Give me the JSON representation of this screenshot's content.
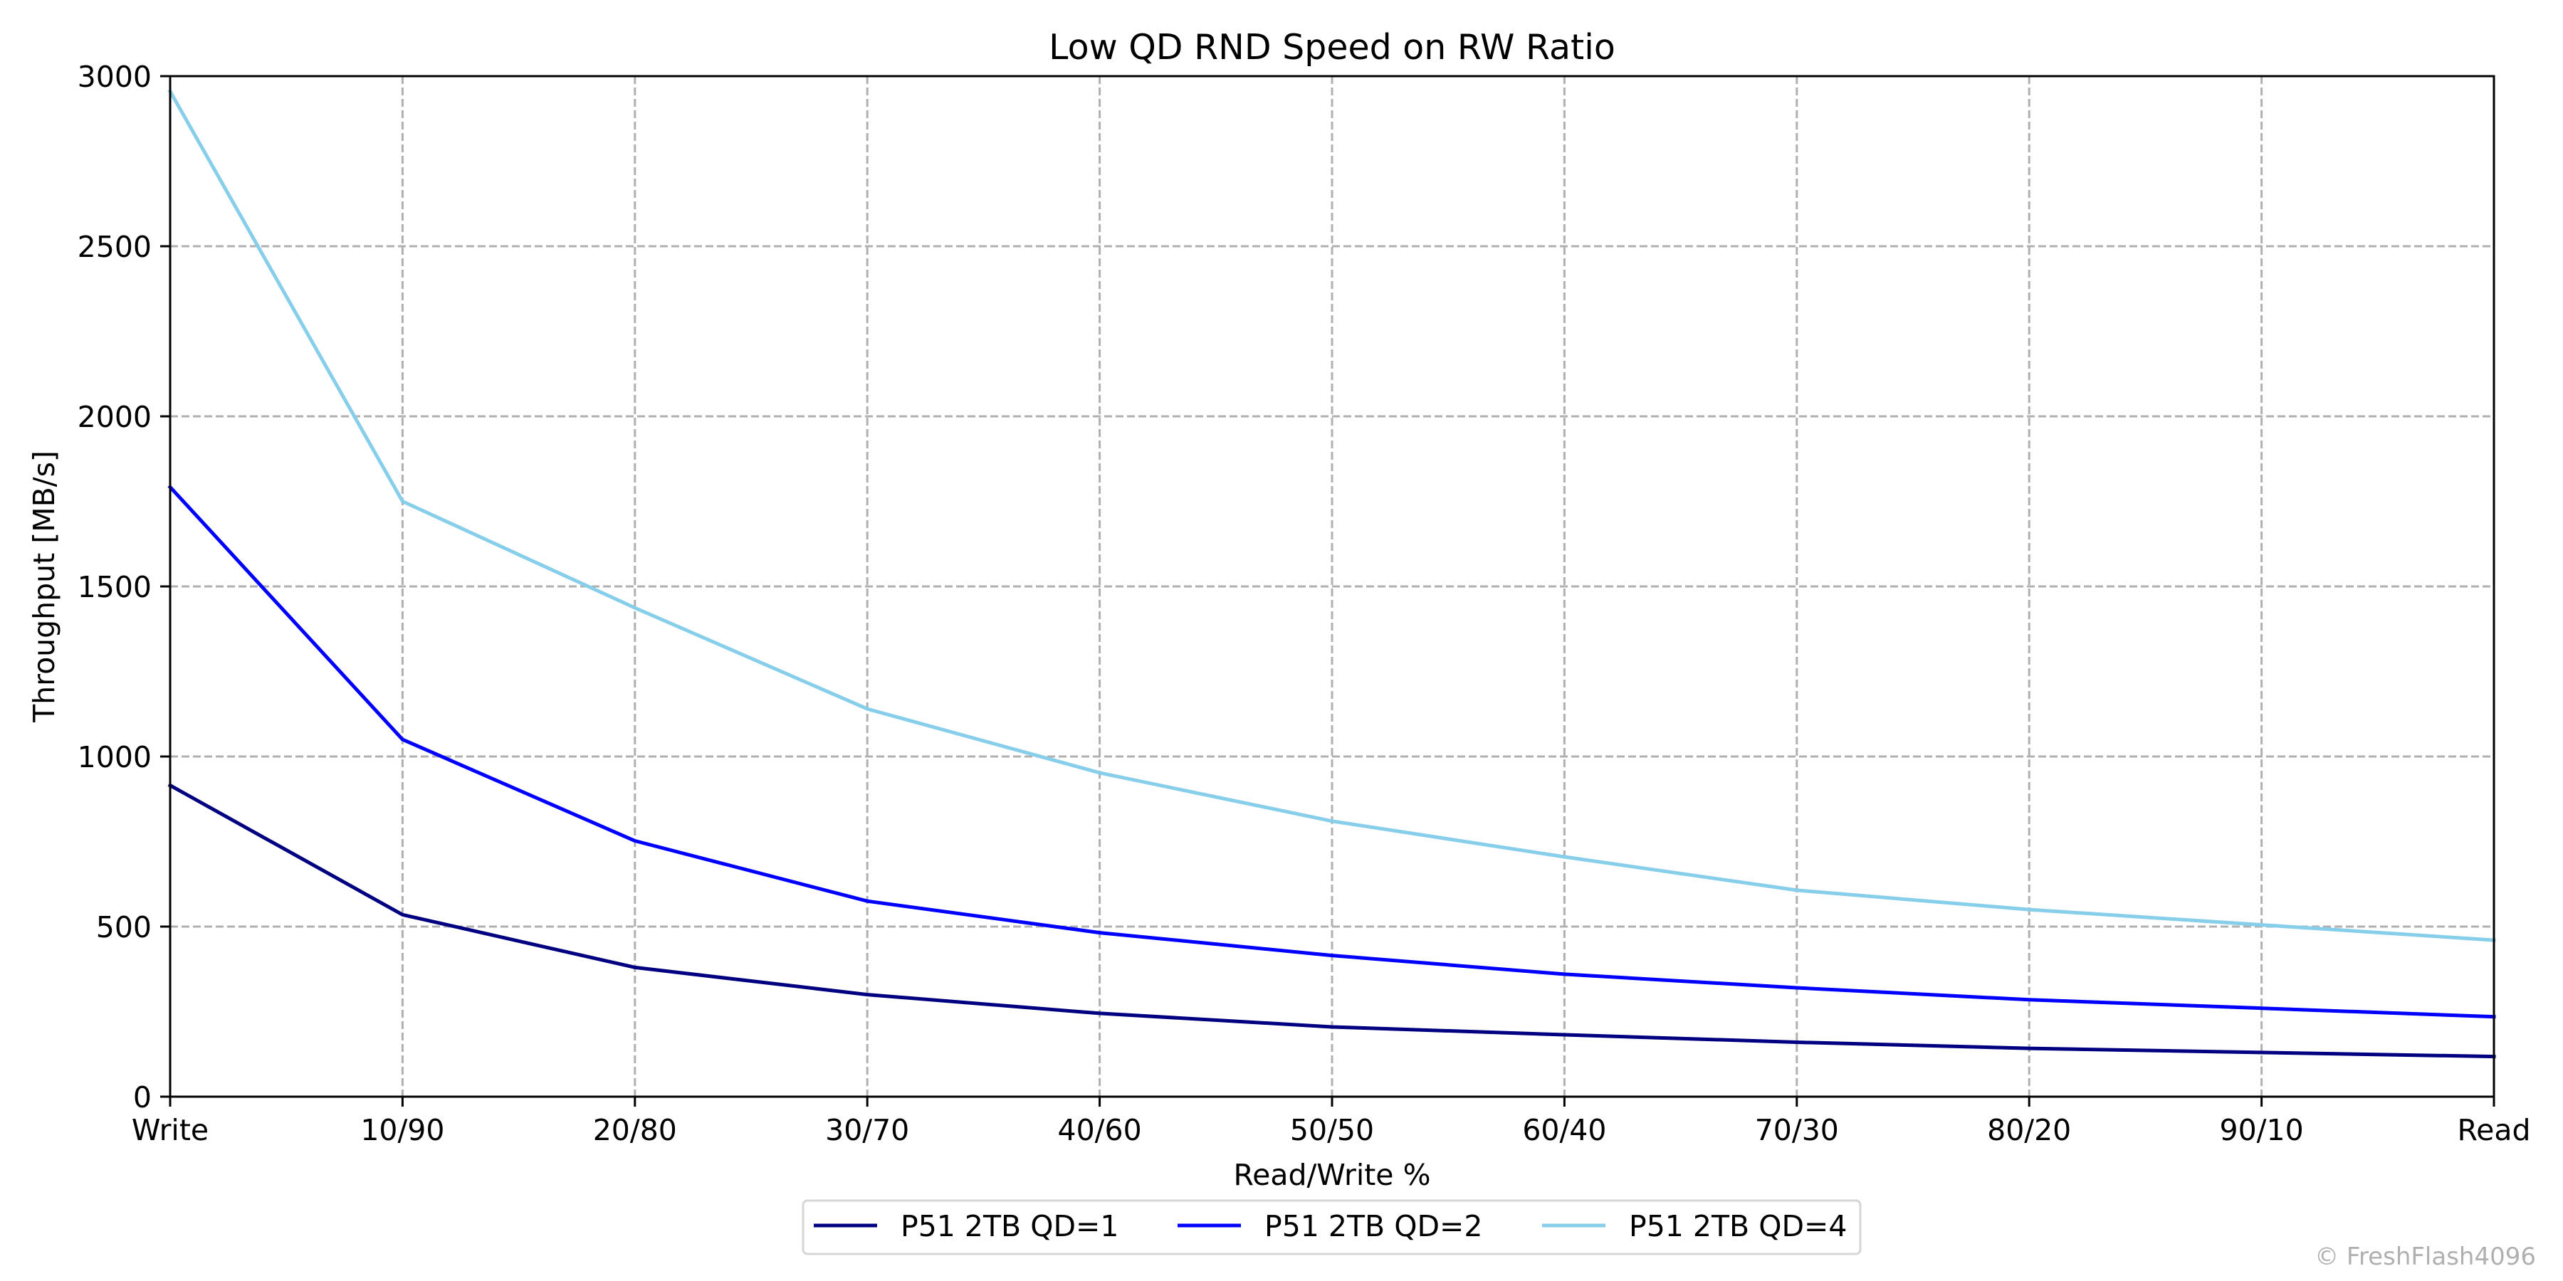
{
  "chart_data": {
    "type": "line",
    "title": "Low QD RND Speed on RW Ratio",
    "xlabel": "Read/Write %",
    "ylabel": "Throughput [MB/s]",
    "categories": [
      "Write",
      "10/90",
      "20/80",
      "30/70",
      "40/60",
      "50/50",
      "60/40",
      "70/30",
      "80/20",
      "90/10",
      "Read"
    ],
    "ylim": [
      0,
      3000
    ],
    "yticks": [
      0,
      500,
      1000,
      1500,
      2000,
      2500,
      3000
    ],
    "grid": true,
    "legend_position": "bottom-center",
    "series": [
      {
        "name": "P51 2TB QD=1",
        "color": "#000080",
        "values": [
          915,
          535,
          380,
          300,
          245,
          205,
          182,
          160,
          142,
          130,
          118
        ]
      },
      {
        "name": "P51 2TB QD=2",
        "color": "#0000ff",
        "values": [
          1792,
          1050,
          752,
          575,
          482,
          415,
          360,
          320,
          285,
          260,
          235
        ]
      },
      {
        "name": "P51 2TB QD=4",
        "color": "#87ceeb",
        "values": [
          2955,
          1750,
          1437,
          1140,
          952,
          810,
          705,
          607,
          550,
          505,
          460
        ]
      }
    ]
  },
  "watermark": "© FreshFlash4096"
}
